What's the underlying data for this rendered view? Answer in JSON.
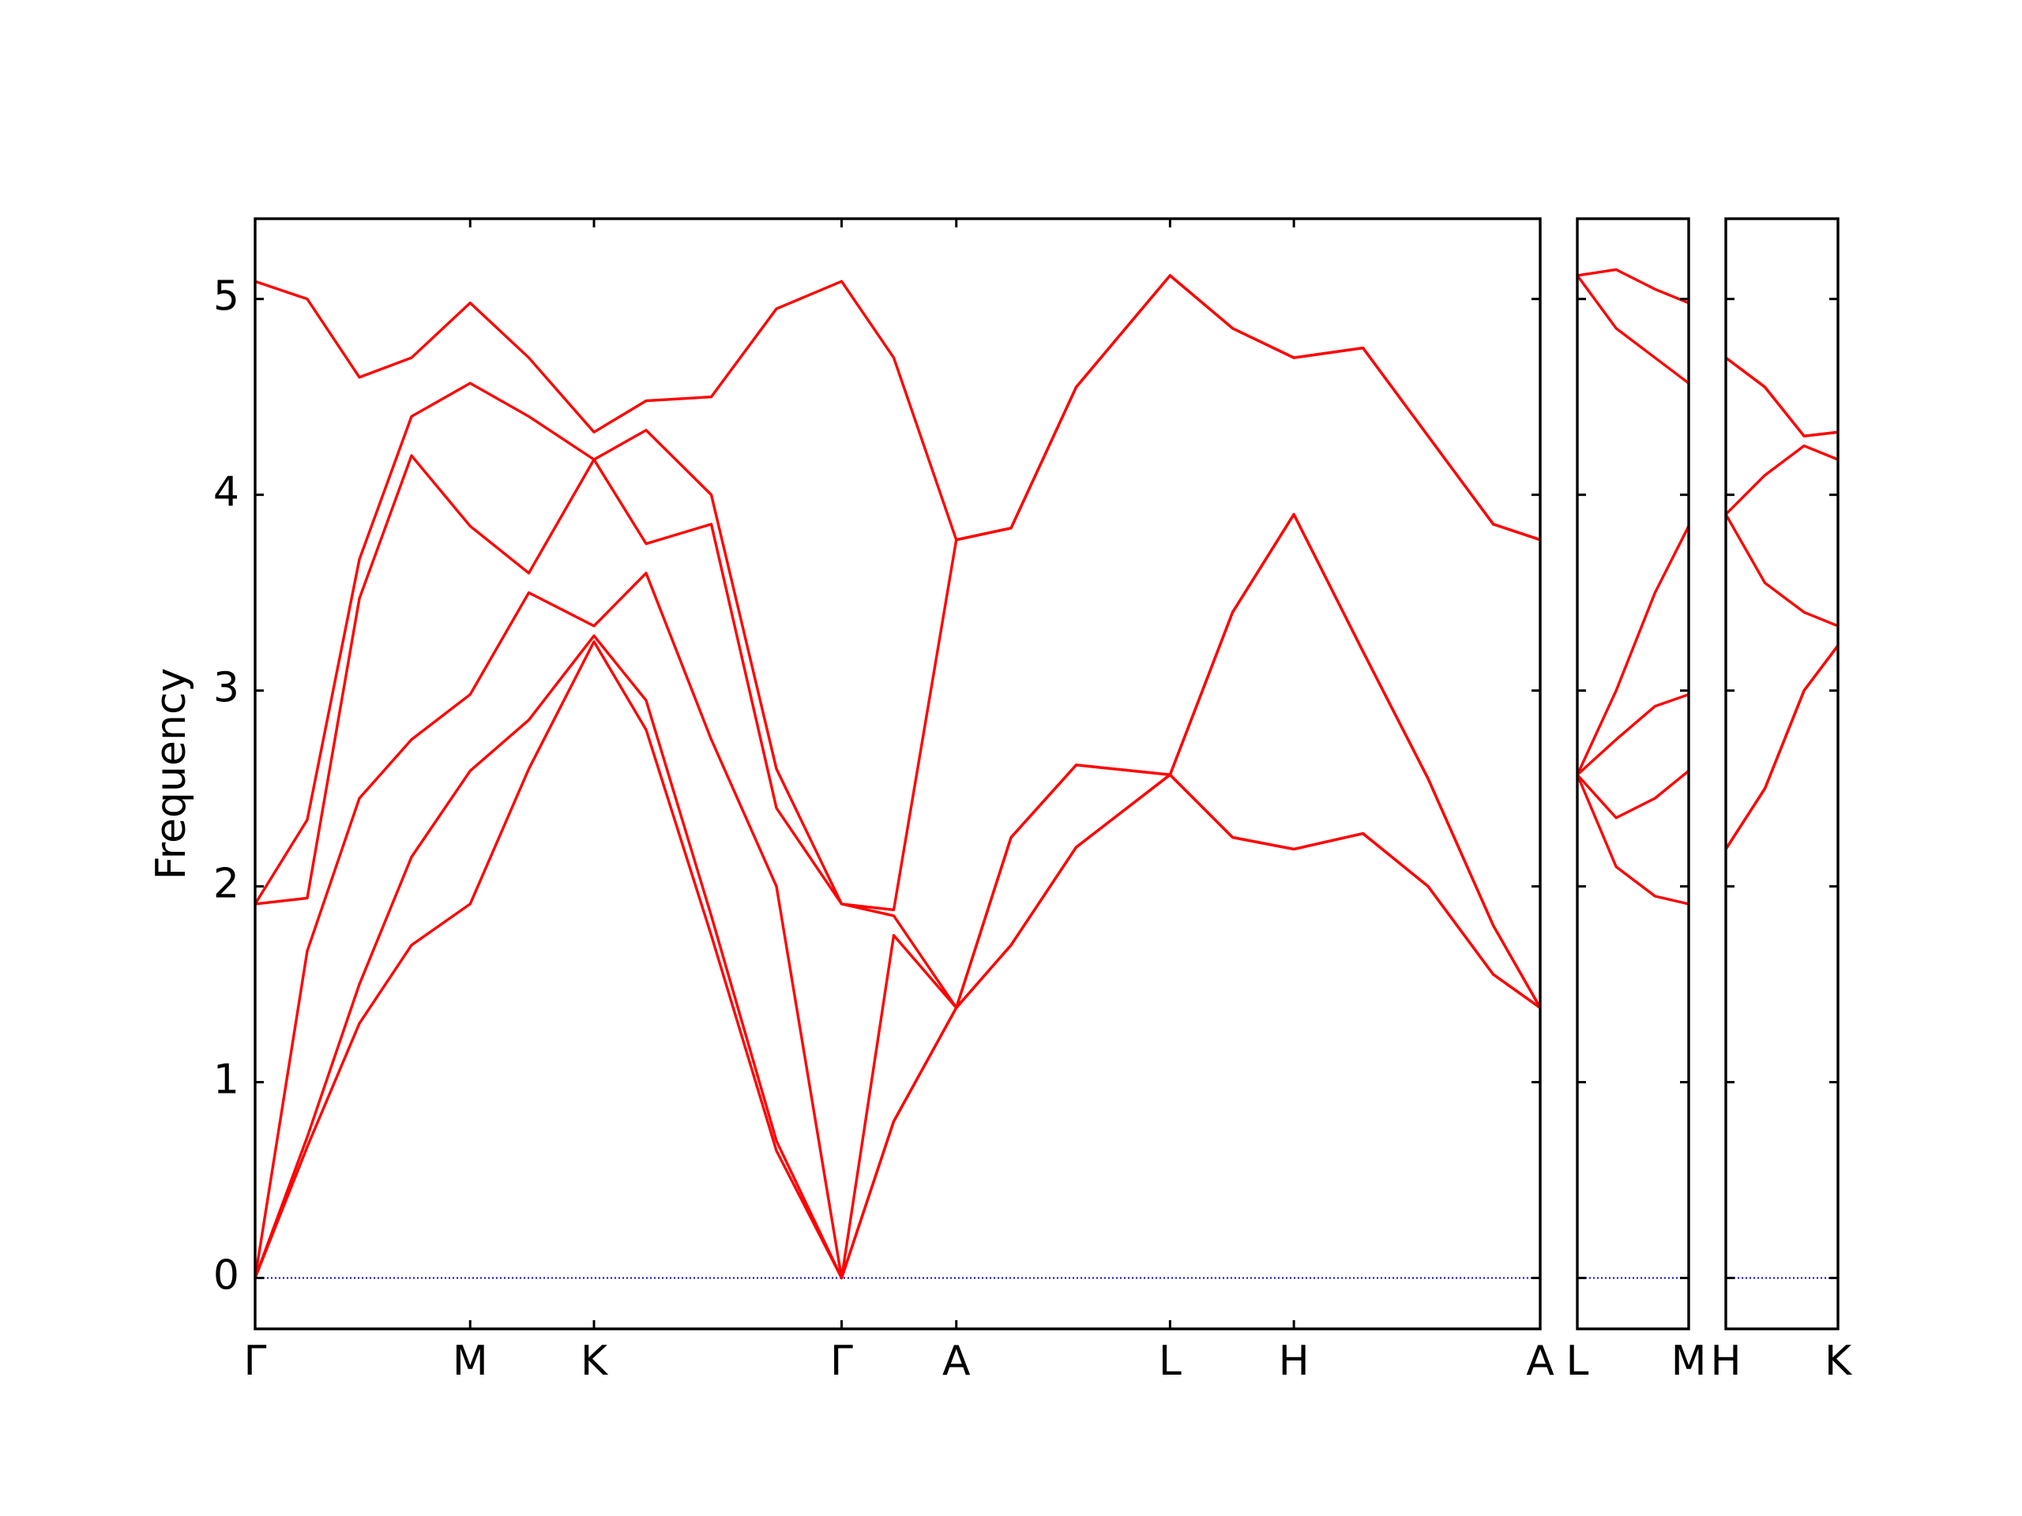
{
  "chart_data": [
    {
      "type": "line",
      "y_label": "Frequency",
      "ylim": [
        -0.26,
        5.41
      ],
      "yticks": [
        0,
        1,
        2,
        3,
        4,
        5
      ],
      "xlim": [
        0,
        9.86
      ],
      "xticks": [
        {
          "value": 0,
          "label": "Γ"
        },
        {
          "value": 1.65,
          "label": "M"
        },
        {
          "value": 2.6,
          "label": "K"
        },
        {
          "value": 4.5,
          "label": "Γ"
        },
        {
          "value": 5.38,
          "label": "A"
        },
        {
          "value": 7.02,
          "label": "L"
        },
        {
          "value": 7.97,
          "label": "H"
        },
        {
          "value": 9.86,
          "label": "A"
        }
      ],
      "hline": {
        "value": 0,
        "color": "#0000ff"
      },
      "x": [
        0,
        0.4,
        0.8,
        1.2,
        1.65,
        2.1,
        2.6,
        3.0,
        3.5,
        4.0,
        4.5,
        4.9,
        5.38,
        5.8,
        6.3,
        7.02,
        7.5,
        7.97,
        8.5,
        9.0,
        9.5,
        9.86
      ],
      "series": [
        {
          "color": "#ff0000",
          "values": [
            0,
            0.67,
            1.3,
            1.7,
            1.91,
            2.6,
            3.25,
            2.8,
            1.75,
            0.65,
            0,
            0.8,
            1.38,
            1.7,
            2.2,
            2.57,
            2.25,
            2.19,
            2.27,
            2.0,
            1.55,
            1.38
          ]
        },
        {
          "color": "#ff0000",
          "values": [
            0,
            0.72,
            1.5,
            2.15,
            2.59,
            2.85,
            3.28,
            2.95,
            1.85,
            0.7,
            0,
            0.8,
            1.38,
            1.7,
            2.2,
            2.57,
            2.25,
            2.19,
            2.27,
            2.0,
            1.55,
            1.38
          ]
        },
        {
          "color": "#ff0000",
          "values": [
            0,
            1.67,
            2.45,
            2.75,
            2.98,
            3.5,
            3.33,
            3.6,
            2.75,
            2.0,
            0,
            1.75,
            1.38,
            2.25,
            2.62,
            2.57,
            3.4,
            3.9,
            3.2,
            2.55,
            1.8,
            1.38
          ]
        },
        {
          "color": "#ff0000",
          "values": [
            1.91,
            1.94,
            3.47,
            4.2,
            3.84,
            3.6,
            4.18,
            3.75,
            3.85,
            2.4,
            1.91,
            1.85,
            1.38,
            2.25,
            2.62,
            2.57,
            3.4,
            3.9,
            3.2,
            2.55,
            1.8,
            1.38
          ]
        },
        {
          "color": "#ff0000",
          "values": [
            1.91,
            2.34,
            3.67,
            4.4,
            4.57,
            4.4,
            4.18,
            4.33,
            4.0,
            2.6,
            1.91,
            1.88,
            3.77,
            3.83,
            4.55,
            5.12,
            4.85,
            4.7,
            4.75,
            4.3,
            3.85,
            3.77
          ]
        },
        {
          "color": "#ff0000",
          "values": [
            5.09,
            5.0,
            4.6,
            4.7,
            4.98,
            4.7,
            4.32,
            4.48,
            4.5,
            4.95,
            5.09,
            4.7,
            3.77,
            3.83,
            4.55,
            5.12,
            4.85,
            4.7,
            4.75,
            4.3,
            3.85,
            3.77
          ]
        }
      ]
    },
    {
      "type": "line",
      "xlim": [
        0,
        0.86
      ],
      "xticks": [
        {
          "value": 0,
          "label": "L"
        },
        {
          "value": 0.86,
          "label": "M"
        }
      ],
      "hline": {
        "value": 0,
        "color": "#0000ff"
      },
      "x": [
        0,
        0.3,
        0.6,
        0.86
      ],
      "series": [
        {
          "color": "#ff0000",
          "values": [
            2.57,
            2.1,
            1.95,
            1.91
          ]
        },
        {
          "color": "#ff0000",
          "values": [
            2.57,
            2.35,
            2.45,
            2.59
          ]
        },
        {
          "color": "#ff0000",
          "values": [
            2.57,
            2.75,
            2.92,
            2.98
          ]
        },
        {
          "color": "#ff0000",
          "values": [
            2.57,
            3.0,
            3.5,
            3.84
          ]
        },
        {
          "color": "#ff0000",
          "values": [
            5.12,
            4.85,
            4.7,
            4.57
          ]
        },
        {
          "color": "#ff0000",
          "values": [
            5.12,
            5.15,
            5.05,
            4.98
          ]
        }
      ]
    },
    {
      "type": "line",
      "xlim": [
        0,
        0.86
      ],
      "xticks": [
        {
          "value": 0,
          "label": "H"
        },
        {
          "value": 0.86,
          "label": "K"
        }
      ],
      "hline": {
        "value": 0,
        "color": "#0000ff"
      },
      "x": [
        0,
        0.3,
        0.6,
        0.86
      ],
      "series": [
        {
          "color": "#ff0000",
          "values": [
            2.19,
            2.5,
            3.0,
            3.23
          ]
        },
        {
          "color": "#ff0000",
          "values": [
            2.19,
            2.5,
            3.0,
            3.23
          ]
        },
        {
          "color": "#ff0000",
          "values": [
            3.9,
            3.55,
            3.4,
            3.33
          ]
        },
        {
          "color": "#ff0000",
          "values": [
            3.9,
            4.1,
            4.25,
            4.18
          ]
        },
        {
          "color": "#ff0000",
          "values": [
            4.7,
            4.55,
            4.3,
            4.32
          ]
        },
        {
          "color": "#ff0000",
          "values": [
            4.7,
            4.55,
            4.3,
            4.32
          ]
        }
      ]
    }
  ]
}
